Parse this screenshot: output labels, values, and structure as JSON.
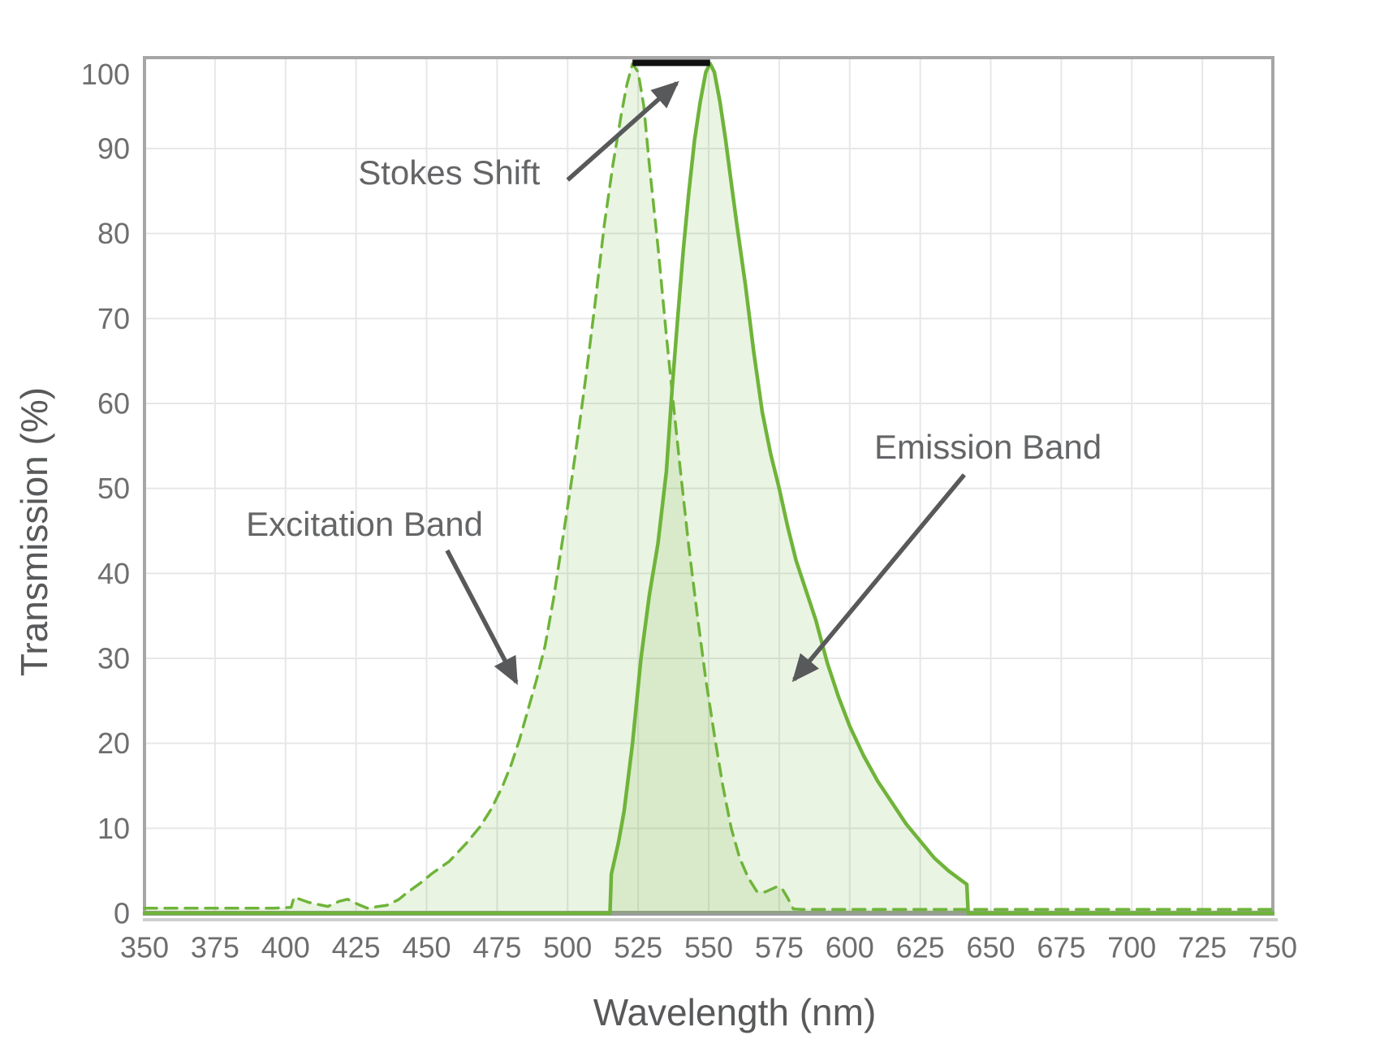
{
  "chart_data": {
    "type": "area",
    "title": "",
    "xlabel": "Wavelength (nm)",
    "ylabel": "Transmission (%)",
    "xlim": [
      350,
      750
    ],
    "ylim": [
      0,
      100
    ],
    "grid": true,
    "legend_position": "none",
    "x_ticks": [
      350,
      375,
      400,
      425,
      450,
      475,
      500,
      525,
      550,
      575,
      600,
      625,
      650,
      675,
      700,
      725,
      750
    ],
    "y_ticks": [
      0,
      10,
      20,
      30,
      40,
      50,
      60,
      70,
      80,
      90,
      100
    ],
    "series": [
      {
        "name": "Excitation Band",
        "style": "dashed",
        "peak_nm": 523,
        "points": [
          [
            350,
            0.6
          ],
          [
            362,
            0.6
          ],
          [
            375,
            0.6
          ],
          [
            388,
            0.6
          ],
          [
            396,
            0.6
          ],
          [
            402,
            0.7
          ],
          [
            403,
            1.9
          ],
          [
            408,
            1.3
          ],
          [
            412,
            1.0
          ],
          [
            415,
            0.8
          ],
          [
            419,
            1.4
          ],
          [
            422,
            1.65
          ],
          [
            426,
            1.0
          ],
          [
            429,
            0.6
          ],
          [
            433,
            0.8
          ],
          [
            436,
            0.95
          ],
          [
            440,
            1.6
          ],
          [
            443,
            2.4
          ],
          [
            448,
            3.6
          ],
          [
            452,
            4.7
          ],
          [
            458,
            6.1
          ],
          [
            464,
            8.2
          ],
          [
            469,
            10.2
          ],
          [
            473,
            12.3
          ],
          [
            477,
            15
          ],
          [
            480,
            17.5
          ],
          [
            483,
            20.5
          ],
          [
            486,
            24
          ],
          [
            489,
            27.5
          ],
          [
            492,
            31.5
          ],
          [
            495,
            37
          ],
          [
            498,
            43.5
          ],
          [
            501,
            50
          ],
          [
            504,
            57
          ],
          [
            507,
            64.5
          ],
          [
            510,
            72.5
          ],
          [
            513,
            81
          ],
          [
            516,
            88
          ],
          [
            519,
            94
          ],
          [
            521,
            97.5
          ],
          [
            523,
            100
          ],
          [
            525,
            99
          ],
          [
            527,
            95
          ],
          [
            529,
            88
          ],
          [
            532,
            78.5
          ],
          [
            535,
            68
          ],
          [
            537,
            61.5
          ],
          [
            540,
            52
          ],
          [
            543,
            43
          ],
          [
            546,
            35
          ],
          [
            549,
            27.5
          ],
          [
            552,
            21
          ],
          [
            555,
            15
          ],
          [
            558,
            10
          ],
          [
            561,
            6.5
          ],
          [
            564,
            4.2
          ],
          [
            567,
            2.6
          ],
          [
            570,
            2.5
          ],
          [
            572,
            2.8
          ],
          [
            574,
            3.1
          ],
          [
            576,
            2.9
          ],
          [
            578,
            1.8
          ],
          [
            580,
            0.5
          ],
          [
            583,
            0.45
          ],
          [
            600,
            0.45
          ],
          [
            620,
            0.45
          ],
          [
            640,
            0.45
          ],
          [
            660,
            0.45
          ],
          [
            680,
            0.45
          ],
          [
            700,
            0.45
          ],
          [
            720,
            0.45
          ],
          [
            740,
            0.45
          ],
          [
            750,
            0.45
          ]
        ]
      },
      {
        "name": "Emission Band",
        "style": "solid",
        "peak_nm": 550.5,
        "points": [
          [
            350,
            0
          ],
          [
            400,
            0
          ],
          [
            450,
            0
          ],
          [
            490,
            0
          ],
          [
            505,
            0
          ],
          [
            515,
            0
          ],
          [
            515.5,
            4.6
          ],
          [
            518,
            8.3
          ],
          [
            520,
            12
          ],
          [
            523,
            20
          ],
          [
            526,
            30
          ],
          [
            529,
            37.5
          ],
          [
            532,
            43.5
          ],
          [
            535,
            52
          ],
          [
            537,
            61.5
          ],
          [
            539,
            70
          ],
          [
            541,
            78
          ],
          [
            543,
            85
          ],
          [
            545,
            91
          ],
          [
            547,
            95.5
          ],
          [
            549,
            99
          ],
          [
            550.5,
            100
          ],
          [
            552,
            99
          ],
          [
            554,
            95.5
          ],
          [
            556,
            91
          ],
          [
            558,
            86
          ],
          [
            560,
            81
          ],
          [
            563,
            74
          ],
          [
            566,
            66
          ],
          [
            569,
            59
          ],
          [
            572,
            54
          ],
          [
            575,
            50
          ],
          [
            578,
            45.5
          ],
          [
            581,
            41.5
          ],
          [
            584,
            38.5
          ],
          [
            588,
            34.5
          ],
          [
            592,
            29.5
          ],
          [
            596,
            25.5
          ],
          [
            600,
            22
          ],
          [
            605,
            18.5
          ],
          [
            610,
            15.5
          ],
          [
            615,
            13
          ],
          [
            620,
            10.5
          ],
          [
            625,
            8.5
          ],
          [
            630,
            6.5
          ],
          [
            635,
            5
          ],
          [
            639,
            4
          ],
          [
            641.5,
            3.4
          ],
          [
            642,
            0
          ],
          [
            650,
            0
          ],
          [
            675,
            0
          ],
          [
            700,
            0
          ],
          [
            725,
            0
          ],
          [
            750,
            0
          ]
        ]
      }
    ],
    "stokes_bar": {
      "from_nm": 523,
      "to_nm": 550.5,
      "at_percent": 100
    },
    "annotations": [
      {
        "text": "Stokes Shift",
        "label_nm": 458,
        "label_pct": 87.2,
        "arrow_from_nm": 500,
        "arrow_from_pct": 86.3,
        "arrow_to_nm": 538.7,
        "arrow_to_pct": 97.7
      },
      {
        "text": "Excitation Band",
        "label_nm": 428,
        "label_pct": 45.8,
        "arrow_from_nm": 457.3,
        "arrow_from_pct": 42.7,
        "arrow_to_nm": 481.8,
        "arrow_to_pct": 27.2
      },
      {
        "text": "Emission Band",
        "label_nm": 649,
        "label_pct": 54.9,
        "arrow_from_nm": 640.6,
        "arrow_from_pct": 51.6,
        "arrow_to_nm": 580.3,
        "arrow_to_pct": 27.5
      }
    ],
    "colors": {
      "curve_green": "#6FB43A",
      "fill_green_rgba": "rgba(111,180,58,0.15)",
      "gridline": "#e7e7e7",
      "plot_border": "#a6a6a6",
      "axis_shadow": "#cfcfcf",
      "tick_text": "#6d6e70",
      "title_text": "#58595b",
      "annotation_text": "#646567",
      "arrow": "#58595b",
      "stokes_bar": "#111111",
      "background": "#ffffff"
    }
  }
}
